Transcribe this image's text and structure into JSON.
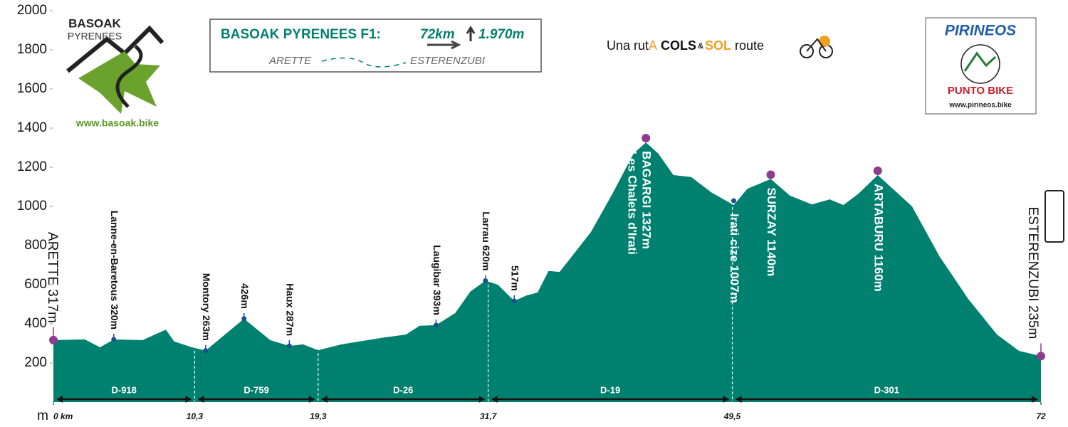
{
  "chart_data": {
    "type": "area",
    "color": "#00806f",
    "y_label": "m",
    "ylim": [
      0,
      2000
    ],
    "yticks": [
      200,
      400,
      600,
      800,
      1000,
      1200,
      1400,
      1600,
      1800,
      2000
    ],
    "xlim": [
      0,
      72
    ],
    "xticks": [
      {
        "value": 0,
        "label": "0 km"
      },
      {
        "value": 10.3,
        "label": "10,3"
      },
      {
        "value": 19.3,
        "label": "19,3"
      },
      {
        "value": 31.7,
        "label": "31,7"
      },
      {
        "value": 49.5,
        "label": "49,5"
      },
      72
    ],
    "x": [
      0,
      2.3,
      3.4,
      4.4,
      6.5,
      8.2,
      8.8,
      10.1,
      11.1,
      13.9,
      15.8,
      17.2,
      18.2,
      19.3,
      21.0,
      24.1,
      25.7,
      26.7,
      27.9,
      29.3,
      30.4,
      31.5,
      32.4,
      33.6,
      34.5,
      35.3,
      36.1,
      36.9,
      37.6,
      39.2,
      40.8,
      42.3,
      43.2,
      44.1,
      45.2,
      46.5,
      48.0,
      49.6,
      50.6,
      52.3,
      53.7,
      55.3,
      56.6,
      57.6,
      58.7,
      60.1,
      62.6,
      64.6,
      66.7,
      68.8,
      70.4,
      72
    ],
    "values": [
      317,
      320,
      280,
      320,
      317,
      370,
      310,
      280,
      263,
      426,
      317,
      287,
      295,
      265,
      295,
      330,
      345,
      390,
      393,
      455,
      565,
      620,
      600,
      517,
      545,
      560,
      670,
      665,
      727,
      870,
      1070,
      1270,
      1327,
      1270,
      1160,
      1150,
      1070,
      1007,
      1090,
      1140,
      1055,
      1010,
      1036,
      1007,
      1065,
      1160,
      1000,
      745,
      527,
      345,
      262,
      235
    ],
    "waypoints": {
      "x": [
        0,
        4.4,
        11.1,
        13.9,
        17.2,
        27.9,
        31.5,
        33.6,
        43.2,
        49.6,
        52.3,
        60.1,
        72
      ],
      "values": [
        317,
        320,
        263,
        426,
        287,
        393,
        620,
        517,
        1327,
        1007,
        1140,
        1160,
        235
      ],
      "labels": [
        "ARETTE 317m",
        "Lanne-en-Baretous 320m",
        "Montory 263m",
        "426m",
        "Haux 287m",
        "Laugibar 393m",
        "Larrau 620m",
        "517m",
        "BAGARGI 1327m",
        "Irati cize 1007m",
        "SURZAY 1140m",
        "ARTABURU 1160m",
        "ESTERENZUBI 235m"
      ],
      "colors": [
        "#8e3a8e",
        "#1c4f8f",
        "#1c4f8f",
        "#1c4f8f",
        "#1c4f8f",
        "#1c4f8f",
        "#1c4f8f",
        "#1c4f8f",
        "#8e3a8e",
        "#1c4f8f",
        "#8e3a8e",
        "#8e3a8e",
        "#8e3a8e"
      ]
    },
    "sublabel": "Les  Chalets d'Irati",
    "segments": [
      {
        "name": "D-918",
        "start": 0,
        "end": 10.3
      },
      {
        "name": "D-759",
        "start": 10.3,
        "end": 19.3
      },
      {
        "name": "D-26",
        "start": 19.3,
        "end": 31.7
      },
      {
        "name": "D-19",
        "start": 31.7,
        "end": 49.5
      },
      {
        "name": "D-301",
        "start": 49.5,
        "end": 72
      }
    ],
    "header": {
      "route": "BASOAK PYRENEES F1:",
      "distance": "72km",
      "climb": "1.970m",
      "start": "ARETTE",
      "finish": "ESTERENZUBI"
    },
    "slogan": [
      "Una rut",
      "A",
      " COLS",
      "&",
      "SOL",
      " route"
    ],
    "logo_left": {
      "name": "BASOAK",
      "sub": "PYRENEES",
      "url": "www.basoak.bike"
    },
    "logo_right": {
      "name": "PIRINEOS",
      "sub": "PUNTO BIKE",
      "url": "www.pirineos.bike"
    }
  }
}
